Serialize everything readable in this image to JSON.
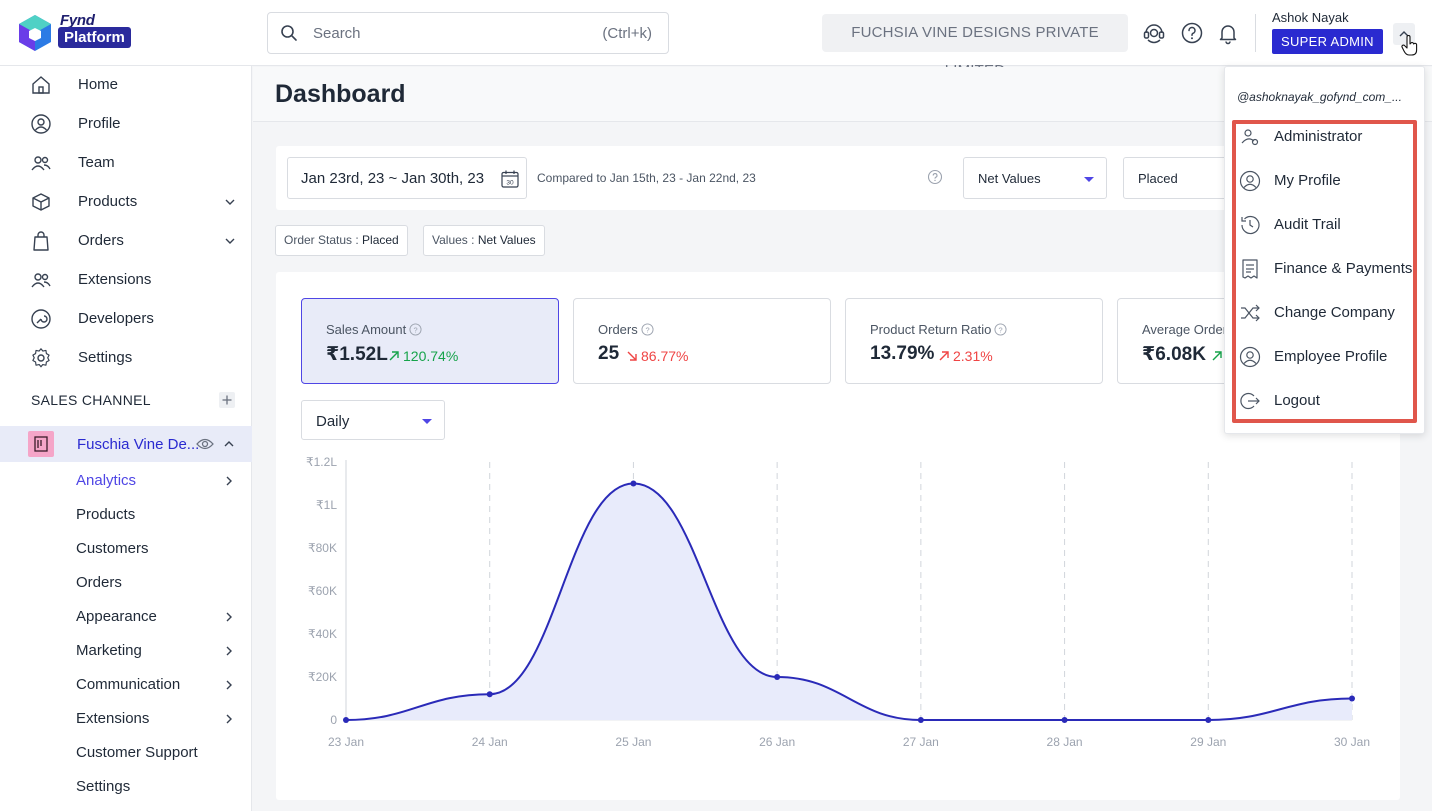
{
  "brand": {
    "name_top": "Fynd",
    "name_badge": "Platform"
  },
  "search": {
    "placeholder": "Search",
    "shortcut": "(Ctrl+k)"
  },
  "header": {
    "company": "FUCHSIA VINE DESIGNS PRIVATE LIMITED",
    "user_name": "Ashok Nayak",
    "role": "SUPER ADMIN"
  },
  "sidebar": {
    "items": [
      {
        "label": "Home",
        "icon": "home-icon"
      },
      {
        "label": "Profile",
        "icon": "profile-icon"
      },
      {
        "label": "Team",
        "icon": "team-icon"
      },
      {
        "label": "Products",
        "icon": "box-icon"
      },
      {
        "label": "Orders",
        "icon": "bag-icon"
      },
      {
        "label": "Extensions",
        "icon": "extensions-icon"
      },
      {
        "label": "Developers",
        "icon": "developers-icon"
      },
      {
        "label": "Settings",
        "icon": "gear-icon"
      }
    ],
    "section_title": "SALES CHANNEL",
    "channel_name": "Fuschia Vine De...",
    "sub_items": [
      {
        "label": "Analytics"
      },
      {
        "label": "Products"
      },
      {
        "label": "Customers"
      },
      {
        "label": "Orders"
      },
      {
        "label": "Appearance"
      },
      {
        "label": "Marketing"
      },
      {
        "label": "Communication"
      },
      {
        "label": "Extensions"
      },
      {
        "label": "Customer Support"
      },
      {
        "label": "Settings"
      }
    ]
  },
  "page": {
    "title": "Dashboard"
  },
  "filters": {
    "date_range": "Jan 23rd, 23 ~ Jan 30th, 23",
    "calendar_day": "30",
    "compare": "Compared to Jan 15th, 23 - Jan 22nd, 23",
    "value_type": "Net Values",
    "status": "Placed",
    "chips": [
      {
        "key": "Order Status : ",
        "value": "Placed"
      },
      {
        "key": "Values : ",
        "value": "Net Values"
      }
    ]
  },
  "kpis": [
    {
      "label": "Sales Amount",
      "value": "₹1.52L",
      "delta": "120.74%",
      "direction": "up"
    },
    {
      "label": "Orders",
      "value": "25",
      "delta": "86.77%",
      "direction": "down"
    },
    {
      "label": "Product Return Ratio",
      "value": "13.79%",
      "delta": "2.31%",
      "direction": "up-red"
    },
    {
      "label": "Average Order",
      "value": "₹6.08K",
      "delta": "",
      "direction": "up"
    }
  ],
  "period": "Daily",
  "chart_data": {
    "type": "area",
    "x": [
      "23 Jan",
      "24 Jan",
      "25 Jan",
      "26 Jan",
      "27 Jan",
      "28 Jan",
      "29 Jan",
      "30 Jan"
    ],
    "values": [
      0,
      12000,
      110000,
      20000,
      0,
      0,
      0,
      10000
    ],
    "ylim": [
      0,
      120000
    ],
    "y_ticks": [
      "0",
      "₹20K",
      "₹40K",
      "₹60K",
      "₹80K",
      "₹1L",
      "₹1.2L"
    ],
    "color": "#2a2ab8",
    "fill": "#e8ebfb"
  },
  "user_menu": {
    "handle": "@ashoknayak_gofynd_com_...",
    "items": [
      {
        "label": "Administrator",
        "icon": "admin-icon"
      },
      {
        "label": "My Profile",
        "icon": "user-circle-icon"
      },
      {
        "label": "Audit Trail",
        "icon": "history-icon"
      },
      {
        "label": "Finance & Payments",
        "icon": "receipt-icon"
      },
      {
        "label": "Change Company",
        "icon": "shuffle-icon"
      },
      {
        "label": "Employee Profile",
        "icon": "user-circle-icon"
      },
      {
        "label": "Logout",
        "icon": "logout-icon"
      }
    ]
  },
  "colors": {
    "accent": "#2a2ad0",
    "highlight": "#e0564b",
    "up": "#16a34a",
    "down": "#ef4444"
  }
}
